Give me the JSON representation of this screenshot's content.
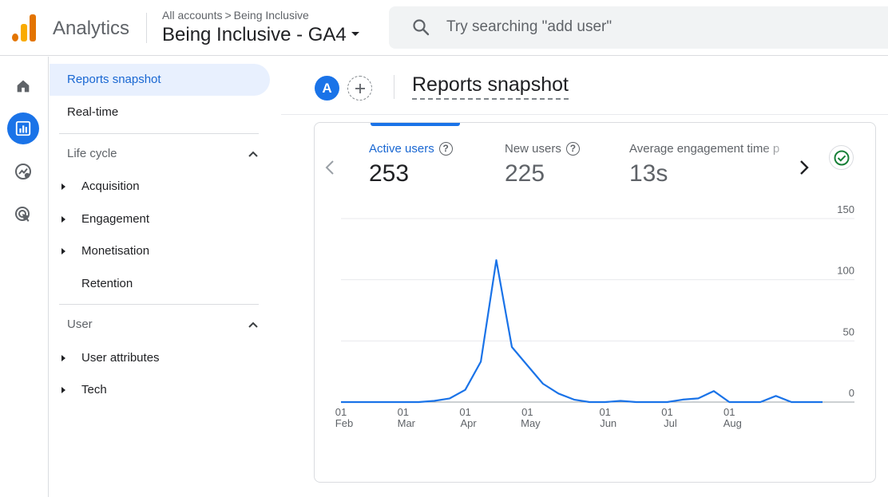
{
  "app": {
    "name": "Analytics",
    "breadcrumb": {
      "root": "All accounts",
      "account": "Being Inclusive"
    },
    "property": "Being Inclusive - GA4",
    "search_placeholder": "Try searching \"add user\""
  },
  "rail": [
    {
      "name": "home-icon",
      "active": false
    },
    {
      "name": "reports-icon",
      "active": true
    },
    {
      "name": "explore-icon",
      "active": false
    },
    {
      "name": "advertising-icon",
      "active": false
    }
  ],
  "sidenav": {
    "reports_snapshot": "Reports snapshot",
    "realtime": "Real-time",
    "lifecycle": {
      "title": "Life cycle",
      "items": [
        "Acquisition",
        "Engagement",
        "Monetisation",
        "Retention"
      ]
    },
    "user": {
      "title": "User",
      "items": [
        "User attributes",
        "Tech"
      ]
    }
  },
  "header": {
    "avatar_letter": "A",
    "title": "Reports snapshot"
  },
  "metrics": [
    {
      "label": "Active users",
      "value": "253",
      "selected": true
    },
    {
      "label": "New users",
      "value": "225",
      "selected": false
    },
    {
      "label": "Average engagement time p",
      "value": "13s",
      "selected": false
    }
  ],
  "colors": {
    "accent": "#1a73e8",
    "line": "#1a73e8",
    "check": "#188038"
  },
  "chart_data": {
    "type": "line",
    "series": [
      {
        "values": [
          0,
          0,
          0,
          0,
          0,
          0,
          1,
          3,
          10,
          33,
          116,
          45,
          30,
          15,
          7,
          2,
          0,
          0,
          1,
          0,
          0,
          0,
          2,
          3,
          9,
          0,
          0,
          0,
          5,
          0,
          0,
          0
        ]
      }
    ],
    "x_tick_labels": [
      {
        "day": "01",
        "month": "Feb"
      },
      {
        "day": "01",
        "month": "Mar"
      },
      {
        "day": "01",
        "month": "Apr"
      },
      {
        "day": "01",
        "month": "May"
      },
      {
        "day": "01",
        "month": "Jun"
      },
      {
        "day": "01",
        "month": "Jul"
      },
      {
        "day": "01",
        "month": "Aug"
      }
    ],
    "y_ticks": [
      0,
      50,
      100,
      150
    ],
    "ylim": [
      0,
      150
    ],
    "grid": true,
    "y_axis_side": "right"
  }
}
